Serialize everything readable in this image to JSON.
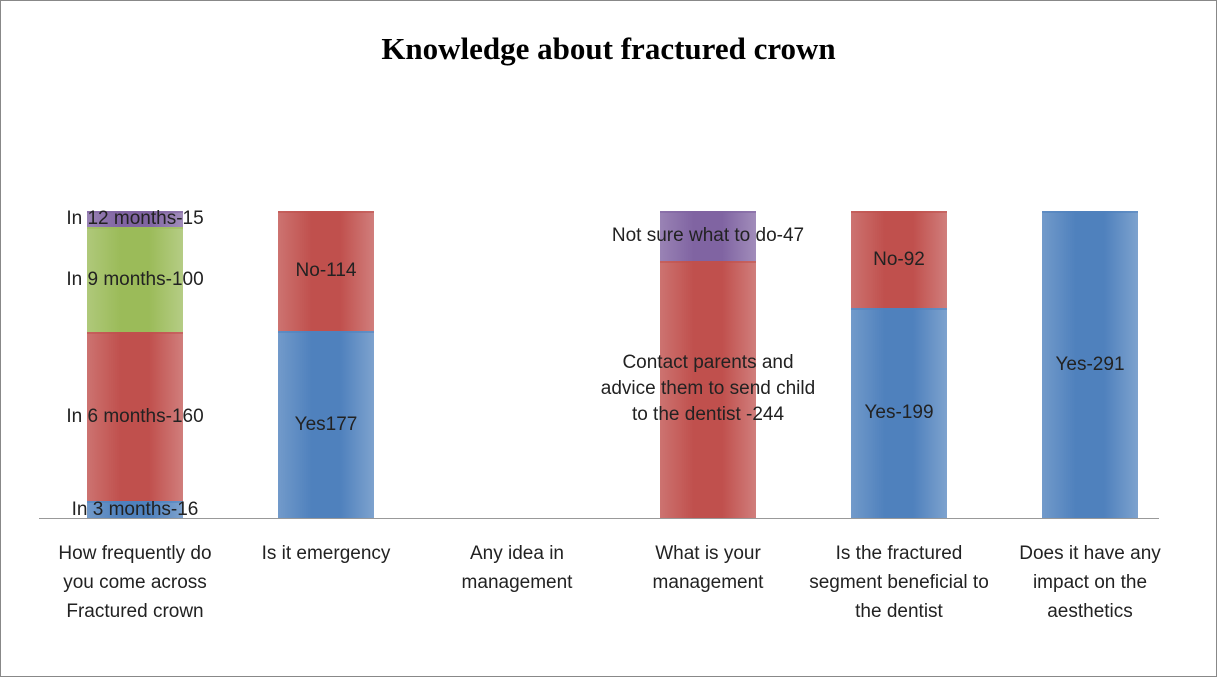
{
  "chart_data": {
    "type": "stacked-bar",
    "title": "Knowledge about fractured crown",
    "categories": [
      "How frequently do you come across Fractured crown",
      "Is it emergency",
      "Any idea in management",
      "What is your management",
      "Is the fractured segment beneficial to the dentist",
      "Does it have any impact on the aesthetics"
    ],
    "ylim": [
      0,
      291
    ],
    "series": [
      {
        "color": "#4f81bd",
        "values": [
          16,
          177,
          null,
          null,
          199,
          291
        ],
        "value_labels": [
          "In 3 months-16",
          "Yes177",
          null,
          null,
          "Yes-199",
          "Yes-291"
        ]
      },
      {
        "color": "#c0504d",
        "values": [
          160,
          114,
          null,
          244,
          92,
          null
        ],
        "value_labels": [
          "In 6 months-160",
          "No-114",
          null,
          "Contact parents and advice them to send child to the dentist -244",
          "No-92",
          null
        ]
      },
      {
        "color": "#9bbb59",
        "values": [
          100,
          null,
          null,
          null,
          null,
          null
        ],
        "value_labels": [
          "In 9 months-100",
          null,
          null,
          null,
          null,
          null
        ]
      },
      {
        "color": "#8064a2",
        "values": [
          15,
          null,
          null,
          47,
          null,
          null
        ],
        "value_labels": [
          "In 12 months-15",
          null,
          null,
          "Not sure what to do-47",
          null,
          null
        ]
      }
    ]
  }
}
